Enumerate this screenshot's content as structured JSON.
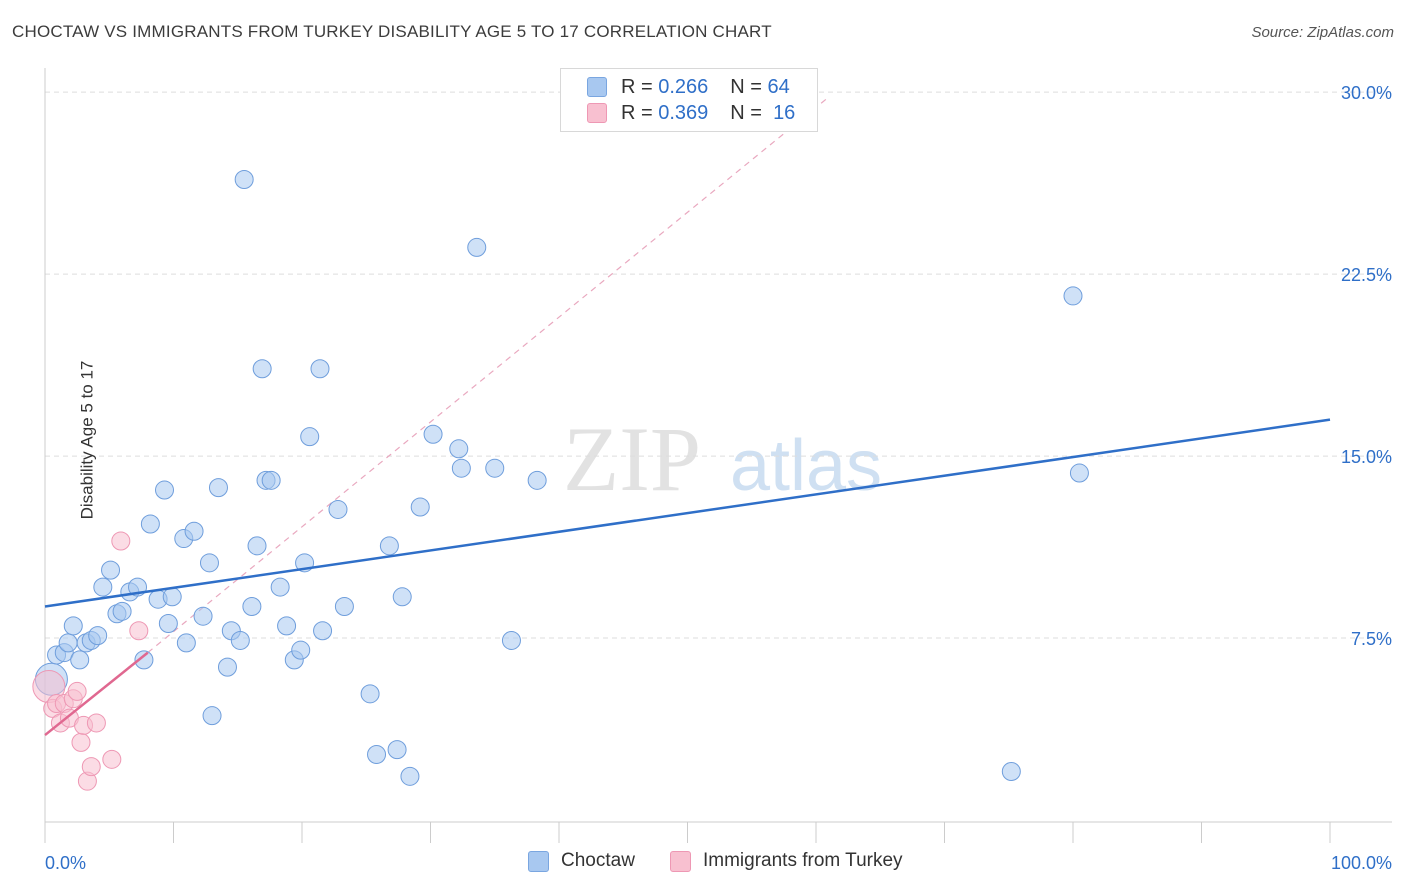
{
  "title": "CHOCTAW VS IMMIGRANTS FROM TURKEY DISABILITY AGE 5 TO 17 CORRELATION CHART",
  "source": "Source: ZipAtlas.com",
  "watermark": {
    "zip": "ZIP",
    "atlas": "atlas"
  },
  "legend": {
    "r_label": "R =",
    "n_label": "N =",
    "rows": [
      {
        "r": "0.266",
        "n": "64",
        "fill": "#a8c8f0",
        "stroke": "#7aa6e0"
      },
      {
        "r": "0.369",
        "n": "16",
        "fill": "#f8c0d0",
        "stroke": "#ee98b4"
      }
    ]
  },
  "bottom_legend": [
    "Choctaw",
    "Immigrants from Turkey"
  ],
  "chart_data": {
    "type": "scatter",
    "title": "CHOCTAW VS IMMIGRANTS FROM TURKEY DISABILITY AGE 5 TO 17 CORRELATION CHART",
    "xlabel": "",
    "ylabel": "Disability Age 5 to 17",
    "xlim": [
      0,
      100
    ],
    "ylim": [
      0,
      30.5
    ],
    "x_tick_labels": [
      "0.0%",
      "100.0%"
    ],
    "y_ticks": [
      7.5,
      15.0,
      22.5,
      30.0
    ],
    "y_tick_labels": [
      "7.5%",
      "15.0%",
      "22.5%",
      "30.0%"
    ],
    "grid": true,
    "series": [
      {
        "name": "Choctaw",
        "color": "#a8c8f0",
        "stroke": "#6f9edc",
        "trend": {
          "x": [
            0,
            100
          ],
          "y": [
            8.8,
            16.5
          ],
          "color": "#2f6fc8"
        },
        "points": [
          [
            0.5,
            5.8
          ],
          [
            0.9,
            6.8
          ],
          [
            1.5,
            6.9
          ],
          [
            1.8,
            7.3
          ],
          [
            2.2,
            8.0
          ],
          [
            2.7,
            6.6
          ],
          [
            3.2,
            7.3
          ],
          [
            3.6,
            7.4
          ],
          [
            4.1,
            7.6
          ],
          [
            4.5,
            9.6
          ],
          [
            5.1,
            10.3
          ],
          [
            5.6,
            8.5
          ],
          [
            6.0,
            8.6
          ],
          [
            6.6,
            9.4
          ],
          [
            7.2,
            9.6
          ],
          [
            7.7,
            6.6
          ],
          [
            8.2,
            12.2
          ],
          [
            8.8,
            9.1
          ],
          [
            9.3,
            13.6
          ],
          [
            9.6,
            8.1
          ],
          [
            9.9,
            9.2
          ],
          [
            10.8,
            11.6
          ],
          [
            11.0,
            7.3
          ],
          [
            11.6,
            11.9
          ],
          [
            12.3,
            8.4
          ],
          [
            12.8,
            10.6
          ],
          [
            13.0,
            4.3
          ],
          [
            13.5,
            13.7
          ],
          [
            14.2,
            6.3
          ],
          [
            14.5,
            7.8
          ],
          [
            15.2,
            7.4
          ],
          [
            15.5,
            26.4
          ],
          [
            16.1,
            8.8
          ],
          [
            16.5,
            11.3
          ],
          [
            16.9,
            18.6
          ],
          [
            17.2,
            14.0
          ],
          [
            17.6,
            14.0
          ],
          [
            18.3,
            9.6
          ],
          [
            18.8,
            8.0
          ],
          [
            19.4,
            6.6
          ],
          [
            19.9,
            7.0
          ],
          [
            20.2,
            10.6
          ],
          [
            20.6,
            15.8
          ],
          [
            21.4,
            18.6
          ],
          [
            21.6,
            7.8
          ],
          [
            22.8,
            12.8
          ],
          [
            23.3,
            8.8
          ],
          [
            25.3,
            5.2
          ],
          [
            25.8,
            2.7
          ],
          [
            26.8,
            11.3
          ],
          [
            27.4,
            2.9
          ],
          [
            27.8,
            9.2
          ],
          [
            28.4,
            1.8
          ],
          [
            29.2,
            12.9
          ],
          [
            30.2,
            15.9
          ],
          [
            32.2,
            15.3
          ],
          [
            32.4,
            14.5
          ],
          [
            33.6,
            23.6
          ],
          [
            35.0,
            14.5
          ],
          [
            36.3,
            7.4
          ],
          [
            38.3,
            14.0
          ],
          [
            75.2,
            2.0
          ],
          [
            80.0,
            21.6
          ],
          [
            80.5,
            14.3
          ]
        ]
      },
      {
        "name": "Immigrants from Turkey",
        "color": "#f8c0d0",
        "stroke": "#ee98b4",
        "trend": {
          "x": [
            0,
            8.0
          ],
          "y": [
            3.5,
            6.9
          ],
          "color": "#e06890",
          "extension": {
            "x": [
              8.0,
              61.0
            ],
            "y": [
              6.9,
              29.8
            ]
          }
        },
        "points": [
          [
            0.3,
            5.5
          ],
          [
            0.6,
            4.6
          ],
          [
            0.9,
            4.8
          ],
          [
            1.2,
            4.0
          ],
          [
            1.5,
            4.8
          ],
          [
            1.9,
            4.2
          ],
          [
            2.2,
            5.0
          ],
          [
            2.5,
            5.3
          ],
          [
            2.8,
            3.2
          ],
          [
            3.0,
            3.9
          ],
          [
            3.3,
            1.6
          ],
          [
            3.6,
            2.2
          ],
          [
            4.0,
            4.0
          ],
          [
            5.2,
            2.5
          ],
          [
            5.9,
            11.5
          ],
          [
            7.3,
            7.8
          ]
        ]
      }
    ]
  }
}
